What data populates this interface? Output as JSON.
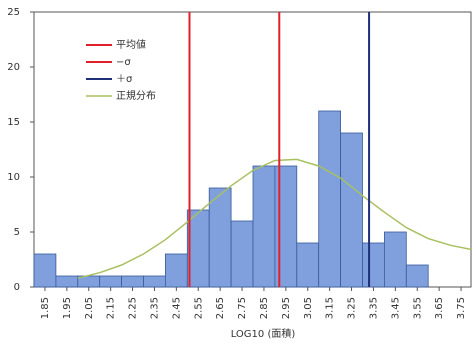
{
  "chart_data": {
    "type": "histogram",
    "x_label": "LOG10 (面積)",
    "bins": [
      1.8,
      1.9,
      2.0,
      2.1,
      2.2,
      2.3,
      2.4,
      2.5,
      2.6,
      2.7,
      2.8,
      2.9,
      3.0,
      3.1,
      3.2,
      3.3,
      3.4,
      3.5,
      3.6,
      3.7,
      3.8
    ],
    "values": [
      3,
      1,
      1,
      1,
      1,
      1,
      3,
      7,
      9,
      6,
      11,
      11,
      4,
      16,
      14,
      4,
      5,
      2,
      0,
      0
    ],
    "color": "#7fa0dc",
    "reference_lines": [
      {
        "name": "平均値",
        "color": "#e0202a",
        "value": 2.92
      },
      {
        "name": "−σ",
        "color": "#e0202a",
        "value": 2.51
      },
      {
        "name": "＋σ",
        "color": "#1f2f7a",
        "value": 3.33
      }
    ],
    "curve": {
      "name": "正規分布",
      "color": "#a8c060",
      "x": [
        2.0,
        2.1,
        2.2,
        2.3,
        2.4,
        2.5,
        2.6,
        2.7,
        2.8,
        2.9,
        3.0,
        3.1,
        3.2,
        3.3,
        3.4,
        3.5,
        3.6,
        3.7,
        3.8
      ],
      "values": [
        0.8,
        1.3,
        2.0,
        3.0,
        4.3,
        5.9,
        7.6,
        9.2,
        10.6,
        11.5,
        11.6,
        11.0,
        9.9,
        8.3,
        6.8,
        5.4,
        4.4,
        3.8,
        3.4
      ]
    },
    "xlim": [
      1.8,
      3.8
    ],
    "xticks": [
      1.85,
      1.95,
      2.05,
      2.15,
      2.25,
      2.35,
      2.45,
      2.55,
      2.65,
      2.75,
      2.85,
      2.95,
      3.05,
      3.15,
      3.25,
      3.35,
      3.45,
      3.55,
      3.65,
      3.75
    ],
    "ylim": [
      0,
      25
    ],
    "yticks": [
      0,
      5,
      10,
      15,
      20,
      25
    ]
  }
}
